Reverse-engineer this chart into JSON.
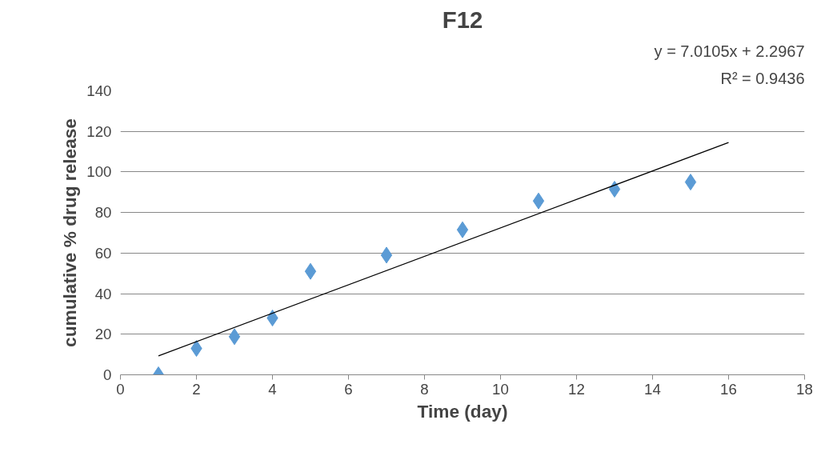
{
  "chart_data": {
    "type": "scatter",
    "title": "F12",
    "xlabel": "Time (day)",
    "ylabel": "cumulative % drug release",
    "annotations": [
      "y = 7.0105x + 2.2967",
      "R² = 0.9436"
    ],
    "x": [
      1,
      2,
      3,
      4,
      5,
      7,
      9,
      11,
      13,
      15
    ],
    "series": [
      {
        "color": "#5b9bd5",
        "marker": "diamond",
        "values": [
          0,
          13,
          18.8,
          28,
          51,
          59,
          71.5,
          85.7,
          91.5,
          95
        ]
      },
      {
        "type": "line",
        "color": "#000000",
        "marker": "none",
        "x": [
          1,
          16
        ],
        "values": [
          9.3,
          114.5
        ]
      }
    ],
    "xlim": [
      0,
      18
    ],
    "xticks": [
      0,
      2,
      4,
      6,
      8,
      10,
      12,
      14,
      16,
      18
    ],
    "ylim": [
      0,
      140
    ],
    "yticks": [
      0,
      20,
      40,
      60,
      80,
      100,
      120,
      140
    ],
    "grid": "y"
  }
}
